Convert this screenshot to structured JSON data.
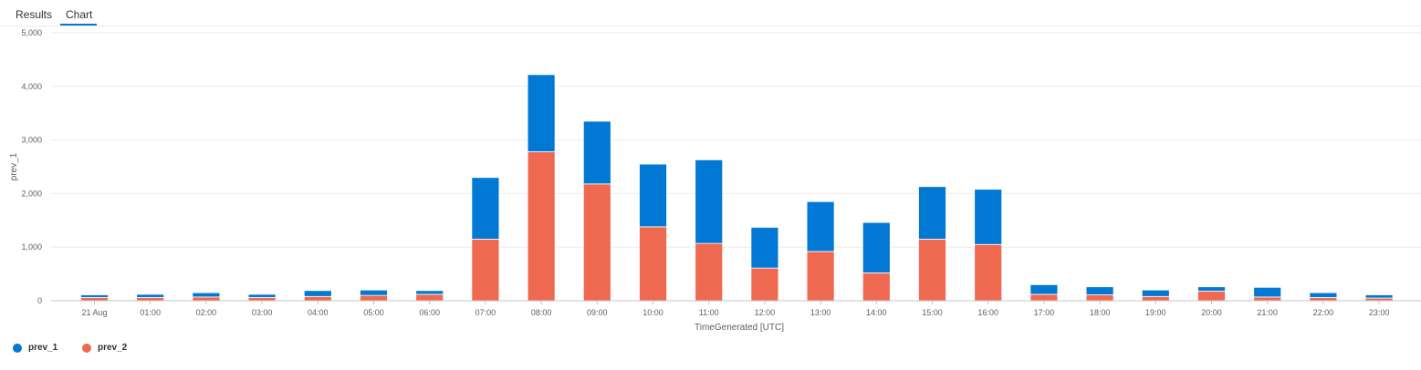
{
  "tabs": [
    {
      "label": "Results",
      "active": false
    },
    {
      "label": "Chart",
      "active": true
    }
  ],
  "colors": {
    "accent": "#0078d4",
    "prev_1": "#0078d4",
    "prev_2": "#ef6950",
    "grid": "#edebe9"
  },
  "chart_data": {
    "type": "bar",
    "stacked": true,
    "xlabel": "TimeGenerated [UTC]",
    "ylabel": "prev_1",
    "ylim": [
      0,
      5000
    ],
    "yticks": [
      "0",
      "1,000",
      "2,000",
      "3,000",
      "4,000",
      "5,000"
    ],
    "ytick_values": [
      0,
      1000,
      2000,
      3000,
      4000,
      5000
    ],
    "grid": true,
    "legend_position": "bottom-left",
    "categories": [
      "21 Aug",
      "01:00",
      "02:00",
      "03:00",
      "04:00",
      "05:00",
      "06:00",
      "07:00",
      "08:00",
      "09:00",
      "10:00",
      "11:00",
      "12:00",
      "13:00",
      "14:00",
      "15:00",
      "16:00",
      "17:00",
      "18:00",
      "19:00",
      "20:00",
      "21:00",
      "22:00",
      "23:00"
    ],
    "series": [
      {
        "name": "prev_2",
        "color": "#ef6950",
        "values": [
          60,
          60,
          70,
          60,
          80,
          100,
          120,
          1150,
          2780,
          2180,
          1380,
          1070,
          610,
          920,
          520,
          1150,
          1050,
          120,
          110,
          80,
          180,
          70,
          60,
          50
        ]
      },
      {
        "name": "prev_1",
        "color": "#0078d4",
        "values": [
          50,
          60,
          80,
          60,
          110,
          100,
          70,
          1150,
          1440,
          1170,
          1170,
          1560,
          760,
          930,
          940,
          980,
          1030,
          180,
          150,
          120,
          80,
          180,
          90,
          60
        ]
      }
    ]
  },
  "legend": [
    {
      "label": "prev_1",
      "color": "#0078d4"
    },
    {
      "label": "prev_2",
      "color": "#ef6950"
    }
  ]
}
